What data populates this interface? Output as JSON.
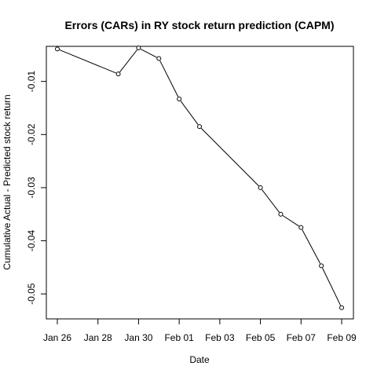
{
  "chart_data": {
    "type": "line",
    "title": "Errors (CARs) in RY stock return prediction (CAPM)",
    "xlabel": "Date",
    "ylabel": "Cumulative Actual - Predicted stock return",
    "x_ticks": [
      "Jan 26",
      "Jan 28",
      "Jan 30",
      "Feb 01",
      "Feb 03",
      "Feb 05",
      "Feb 07",
      "Feb 09"
    ],
    "x_tick_dates": [
      "2018-01-26",
      "2018-01-28",
      "2018-01-30",
      "2018-02-01",
      "2018-02-03",
      "2018-02-05",
      "2018-02-07",
      "2018-02-09"
    ],
    "y_ticks": [
      "-0.01",
      "-0.02",
      "-0.03",
      "-0.04",
      "-0.05"
    ],
    "y_tick_values": [
      -0.01,
      -0.02,
      -0.03,
      -0.04,
      -0.05
    ],
    "xlim": [
      "2018-01-25.6",
      "2018-02-09.4"
    ],
    "ylim": [
      -0.0547,
      -0.0034
    ],
    "series": [
      {
        "x": [
          "2018-01-26",
          "2018-01-29",
          "2018-01-30",
          "2018-01-31",
          "2018-02-01",
          "2018-02-02",
          "2018-02-05",
          "2018-02-06",
          "2018-02-07",
          "2018-02-08",
          "2018-02-09"
        ],
        "values": [
          -0.0039,
          -0.0086,
          -0.0037,
          -0.0057,
          -0.0133,
          -0.0185,
          -0.03,
          -0.035,
          -0.0375,
          -0.0447,
          -0.0526
        ]
      }
    ],
    "marker": "open-circle",
    "line_color": "#000000",
    "grid": false,
    "legend": "none"
  }
}
